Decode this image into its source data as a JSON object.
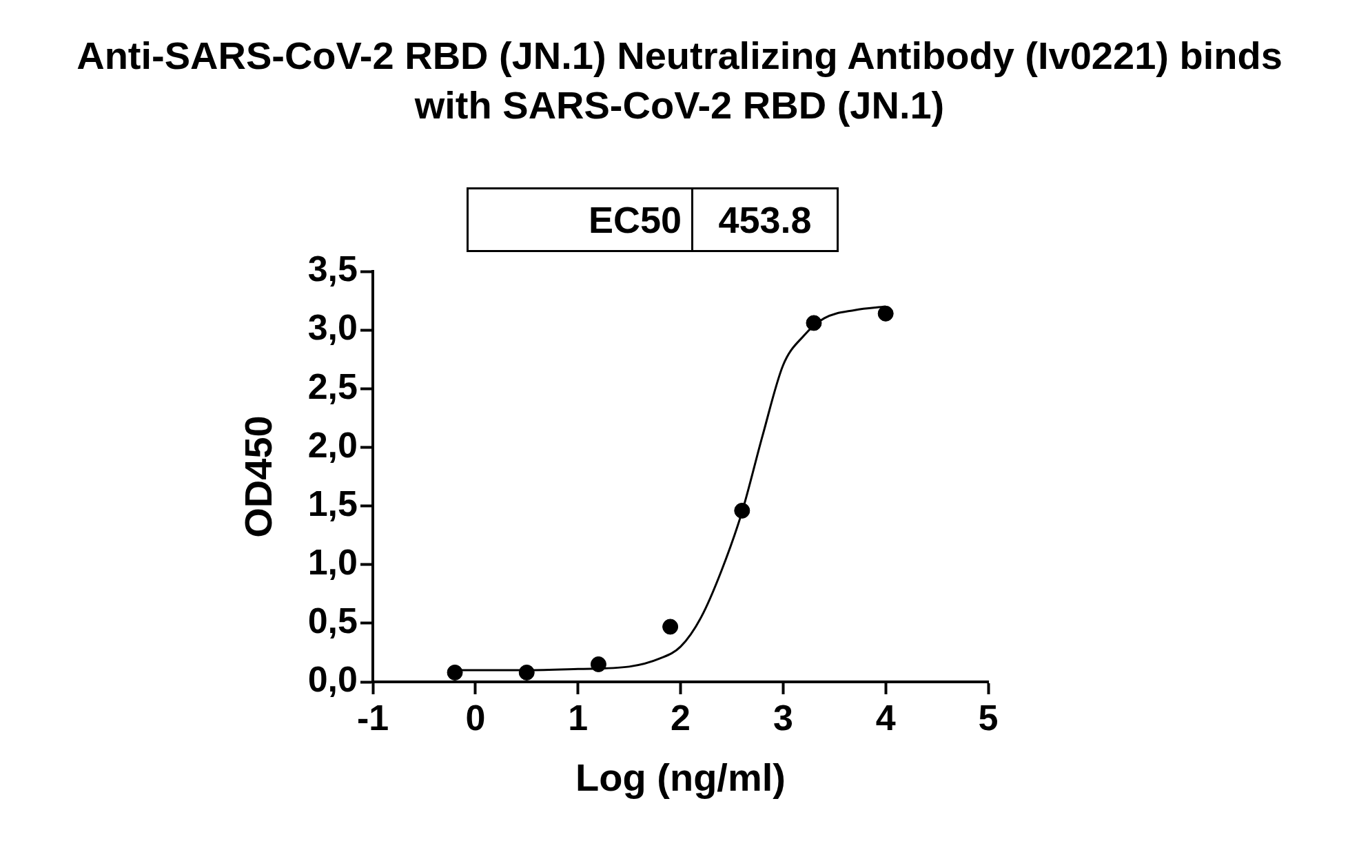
{
  "chart_data": {
    "type": "scatter",
    "title": "Anti-SARS-CoV-2 RBD (JN.1) Neutralizing Antibody (Iv0221) binds with SARS-CoV-2 RBD (JN.1)",
    "xlabel": "Log (ng/ml)",
    "ylabel": "OD450",
    "annotations": [
      "EC50",
      "453.8"
    ],
    "series": [
      {
        "color": "#000000",
        "marker": "circle",
        "x": [
          -0.2,
          0.5,
          1.2,
          1.9,
          2.6,
          3.3,
          4.0
        ],
        "values": [
          0.08,
          0.08,
          0.15,
          0.47,
          1.46,
          3.06,
          3.14
        ]
      },
      {
        "type": "line",
        "color": "#000000",
        "marker": "none",
        "x": [
          -0.2,
          0.5,
          1.0,
          1.5,
          1.8,
          2.0,
          2.2,
          2.4,
          2.6,
          2.8,
          3.0,
          3.2,
          3.4,
          3.7,
          4.0
        ],
        "values": [
          0.1,
          0.1,
          0.11,
          0.13,
          0.2,
          0.3,
          0.55,
          0.95,
          1.45,
          2.1,
          2.7,
          2.95,
          3.1,
          3.17,
          3.2
        ]
      }
    ],
    "xlim": [
      -1,
      5
    ],
    "xticks": [
      -1,
      0,
      1,
      2,
      3,
      4,
      5
    ],
    "ylim": [
      0,
      3.5
    ],
    "yticks": [
      {
        "value": 0,
        "label": "0,0"
      },
      {
        "value": 0.5,
        "label": "0,5"
      },
      {
        "value": 1,
        "label": "1,0"
      },
      {
        "value": 1.5,
        "label": "1,5"
      },
      {
        "value": 2,
        "label": "2,0"
      },
      {
        "value": 2.5,
        "label": "2,5"
      },
      {
        "value": 3,
        "label": "3,0"
      },
      {
        "value": 3.5,
        "label": "3,5"
      }
    ],
    "grid": false,
    "legend": false
  }
}
